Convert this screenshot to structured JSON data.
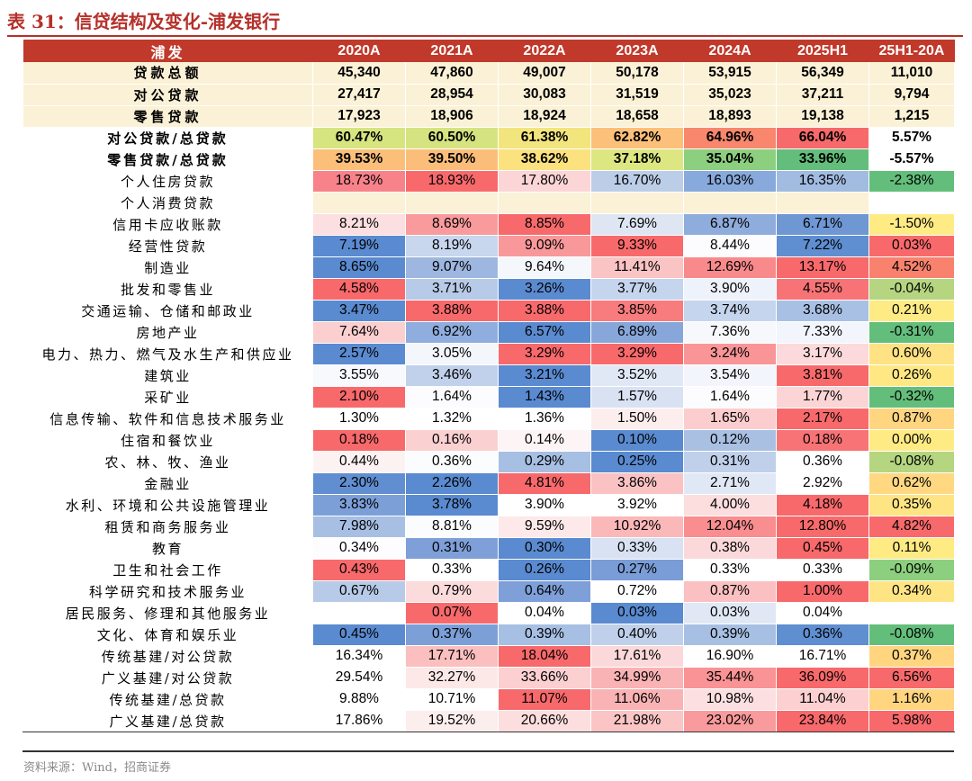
{
  "title": "表 31：信贷结构及变化-浦发银行",
  "source": "资料来源：Wind，招商证券",
  "columns": [
    "浦发",
    "2020A",
    "2021A",
    "2022A",
    "2023A",
    "2024A",
    "2025H1",
    "25H1-20A"
  ],
  "rows": [
    {
      "label": "贷款总额",
      "type": "sum",
      "values": [
        "45,340",
        "47,860",
        "49,007",
        "50,178",
        "53,915",
        "56,349",
        "11,010"
      ]
    },
    {
      "label": "对公贷款",
      "type": "sum",
      "values": [
        "27,417",
        "28,954",
        "30,083",
        "31,519",
        "35,023",
        "37,211",
        "9,794"
      ]
    },
    {
      "label": "零售贷款",
      "type": "sum",
      "values": [
        "17,923",
        "18,906",
        "18,924",
        "18,658",
        "18,893",
        "19,138",
        "1,215"
      ]
    },
    {
      "label": "对公贷款/总贷款",
      "type": "ratio",
      "sep": true,
      "values": [
        "60.47%",
        "60.50%",
        "61.38%",
        "62.82%",
        "64.96%",
        "66.04%",
        "5.57%"
      ],
      "colors": [
        "#d7e580",
        "#d5e480",
        "#f3e57e",
        "#fcc07a",
        "#f8876d",
        "#f7696b",
        "#ffffff"
      ]
    },
    {
      "label": "零售贷款/总贷款",
      "type": "ratio",
      "values": [
        "39.53%",
        "39.50%",
        "38.62%",
        "37.18%",
        "35.04%",
        "33.96%",
        "-5.57%"
      ],
      "colors": [
        "#fbbf7a",
        "#fbbe7a",
        "#fbe27f",
        "#dde781",
        "#8ccf7e",
        "#63be7b",
        "#ffffff"
      ]
    },
    {
      "label": "个人住房贷款",
      "sep": true,
      "values": [
        "18.73%",
        "18.93%",
        "17.80%",
        "16.70%",
        "16.03%",
        "16.35%",
        "-2.38%"
      ],
      "colors": [
        "#f8828a",
        "#f8696b",
        "#fcd5d6",
        "#bccde8",
        "#88a9db",
        "#a1bbe1",
        "#63be7b"
      ]
    },
    {
      "label": "个人消费贷款",
      "values": [
        "",
        "",
        "",
        "",
        "",
        "",
        ""
      ],
      "colors": [
        "#fbf1d6",
        "#fbf1d6",
        "#fbf1d6",
        "#fbf1d6",
        "#fbf1d6",
        "#fbf1d6",
        "#ffffff"
      ]
    },
    {
      "label": "信用卡应收账款",
      "values": [
        "8.21%",
        "8.69%",
        "8.85%",
        "7.69%",
        "6.87%",
        "6.71%",
        "-1.50%"
      ],
      "colors": [
        "#fcdfe0",
        "#f99b9d",
        "#f8696b",
        "#dfe6f3",
        "#8eacdc",
        "#6e97d4",
        "#ffeb84"
      ]
    },
    {
      "label": "经营性贷款",
      "values": [
        "7.19%",
        "8.19%",
        "9.09%",
        "9.33%",
        "8.44%",
        "7.22%",
        "0.03%"
      ],
      "colors": [
        "#5a8ad0",
        "#c8d6ee",
        "#f9989a",
        "#f8696b",
        "#fcfcff",
        "#5f8ed1",
        "#f8696b"
      ]
    },
    {
      "label": "制造业",
      "sep": true,
      "values": [
        "8.65%",
        "9.07%",
        "9.64%",
        "11.41%",
        "12.69%",
        "13.17%",
        "4.52%"
      ],
      "colors": [
        "#5a8ad0",
        "#9db7e0",
        "#f4f7fc",
        "#fac3c4",
        "#f88a8c",
        "#f8696b",
        "#f8826d"
      ]
    },
    {
      "label": "批发和零售业",
      "values": [
        "4.58%",
        "3.71%",
        "3.26%",
        "3.77%",
        "3.90%",
        "4.55%",
        "-0.04%"
      ],
      "colors": [
        "#f8696b",
        "#b7cae7",
        "#5a8ad0",
        "#c6d5ee",
        "#eef2fa",
        "#f87376",
        "#b5d580"
      ]
    },
    {
      "label": "交通运输、仓储和邮政业",
      "values": [
        "3.47%",
        "3.88%",
        "3.88%",
        "3.85%",
        "3.74%",
        "3.68%",
        "0.21%"
      ],
      "colors": [
        "#5a8ad0",
        "#f8696b",
        "#f8696b",
        "#f87b7d",
        "#c6d5ee",
        "#a8c0e3",
        "#ffeb84"
      ]
    },
    {
      "label": "房地产业",
      "values": [
        "7.64%",
        "6.92%",
        "6.57%",
        "6.89%",
        "7.36%",
        "7.33%",
        "-0.31%"
      ],
      "colors": [
        "#fbcfd0",
        "#8fadde",
        "#5a8ad0",
        "#87a7da",
        "#f6f8fc",
        "#f2f5fb",
        "#63be7b"
      ]
    },
    {
      "label": "电力、热力、燃气及水生产和供应业",
      "values": [
        "2.57%",
        "3.05%",
        "3.29%",
        "3.29%",
        "3.24%",
        "3.17%",
        "0.60%"
      ],
      "colors": [
        "#5a8ad0",
        "#f3f6fb",
        "#f8696b",
        "#f8696b",
        "#f99597",
        "#fcdadb",
        "#ffe283"
      ]
    },
    {
      "label": "建筑业",
      "values": [
        "3.55%",
        "3.46%",
        "3.21%",
        "3.52%",
        "3.54%",
        "3.81%",
        "0.26%"
      ],
      "colors": [
        "#f7f9fd",
        "#c1d1ec",
        "#5a8ad0",
        "#e1e8f5",
        "#f2f5fb",
        "#f8696b",
        "#ffe884"
      ]
    },
    {
      "label": "采矿业",
      "values": [
        "2.10%",
        "1.64%",
        "1.43%",
        "1.57%",
        "1.64%",
        "1.77%",
        "-0.32%"
      ],
      "colors": [
        "#f8696b",
        "#fcfcff",
        "#5a8ad0",
        "#d8e2f3",
        "#fcfcff",
        "#fbd5d6",
        "#63be7b"
      ]
    },
    {
      "label": "信息传输、软件和信息技术服务业",
      "values": [
        "1.30%",
        "1.32%",
        "1.36%",
        "1.50%",
        "1.65%",
        "2.17%",
        "0.87%"
      ],
      "colors": [
        "#ffffff",
        "#ffffff",
        "#ffffff",
        "#fdeeee",
        "#fccdce",
        "#f8696b",
        "#ffd580"
      ]
    },
    {
      "label": "住宿和餐饮业",
      "values": [
        "0.18%",
        "0.16%",
        "0.14%",
        "0.10%",
        "0.12%",
        "0.18%",
        "0.00%"
      ],
      "colors": [
        "#f8696b",
        "#fbd0d1",
        "#fcf4f5",
        "#5a8ad0",
        "#a9c0e3",
        "#f87376",
        "#ffeb84"
      ]
    },
    {
      "label": "农、林、牧、渔业",
      "values": [
        "0.44%",
        "0.36%",
        "0.29%",
        "0.25%",
        "0.31%",
        "0.36%",
        "-0.08%"
      ],
      "colors": [
        "#fdf2f2",
        "#fbfcfe",
        "#a7bfe3",
        "#5a8ad0",
        "#c0d0eb",
        "#ffffff",
        "#b5d580"
      ]
    },
    {
      "label": "金融业",
      "values": [
        "2.30%",
        "2.26%",
        "4.81%",
        "3.86%",
        "2.71%",
        "2.92%",
        "0.62%"
      ],
      "colors": [
        "#608ed1",
        "#5a8ad0",
        "#f8696b",
        "#fac2c3",
        "#e1e8f5",
        "#ffffff",
        "#ffd881"
      ]
    },
    {
      "label": "水利、环境和公共设施管理业",
      "values": [
        "3.83%",
        "3.78%",
        "3.90%",
        "3.92%",
        "4.00%",
        "4.18%",
        "0.35%"
      ],
      "colors": [
        "#7c9fd8",
        "#5a8ad0",
        "#ffffff",
        "#ffffff",
        "#fcdedf",
        "#f8696b",
        "#ffe483"
      ]
    },
    {
      "label": "租赁和商务服务业",
      "values": [
        "7.98%",
        "8.81%",
        "9.59%",
        "10.92%",
        "12.04%",
        "12.80%",
        "4.82%"
      ],
      "colors": [
        "#a7bfe3",
        "#fbfcfe",
        "#fde9e9",
        "#fbb8b9",
        "#f98d8f",
        "#f8696b",
        "#f8696b"
      ]
    },
    {
      "label": "教育",
      "values": [
        "0.34%",
        "0.31%",
        "0.30%",
        "0.33%",
        "0.38%",
        "0.45%",
        "0.11%"
      ],
      "colors": [
        "#fdfdff",
        "#7f9fd8",
        "#5a8ad0",
        "#d8e2f3",
        "#fbd9da",
        "#f8696b",
        "#ffeb84"
      ]
    },
    {
      "label": "卫生和社会工作",
      "values": [
        "0.43%",
        "0.33%",
        "0.26%",
        "0.27%",
        "0.33%",
        "0.33%",
        "-0.09%"
      ],
      "colors": [
        "#f8696b",
        "#ffffff",
        "#5a8ad0",
        "#7a9cd7",
        "#ffffff",
        "#ffffff",
        "#8ccf7e"
      ]
    },
    {
      "label": "科学研究和技术服务业",
      "values": [
        "0.67%",
        "0.79%",
        "0.64%",
        "0.72%",
        "0.87%",
        "1.00%",
        "0.34%"
      ],
      "colors": [
        "#b7cae7",
        "#fbdbdc",
        "#7e9fd8",
        "#ffffff",
        "#fbc0c1",
        "#f8696b",
        "#ffe483"
      ]
    },
    {
      "label": "居民服务、修理和其他服务业",
      "values": [
        "",
        "0.07%",
        "0.04%",
        "0.03%",
        "0.03%",
        "0.04%",
        ""
      ],
      "colors": [
        "#ffffff",
        "#f8696b",
        "#ffffff",
        "#5a8ad0",
        "#e1e8f5",
        "#ffffff",
        "#ffffff"
      ]
    },
    {
      "label": "文化、体育和娱乐业",
      "values": [
        "0.45%",
        "0.37%",
        "0.39%",
        "0.40%",
        "0.39%",
        "0.36%",
        "-0.08%"
      ],
      "colors": [
        "#5a8ad0",
        "#7c9fd8",
        "#a7bfe3",
        "#c0d0eb",
        "#a7bfe3",
        "#5f8ed1",
        "#63be7b"
      ]
    },
    {
      "label": "传统基建/对公贷款",
      "sep": true,
      "values": [
        "16.34%",
        "17.71%",
        "18.04%",
        "17.61%",
        "16.90%",
        "16.71%",
        "0.37%"
      ],
      "colors": [
        "#ffffff",
        "#fbbfc0",
        "#f8696b",
        "#fbd9da",
        "#ffffff",
        "#ffffff",
        "#ffd580"
      ]
    },
    {
      "label": "广义基建/对公贷款",
      "values": [
        "29.54%",
        "32.27%",
        "33.66%",
        "34.99%",
        "35.44%",
        "36.09%",
        "6.56%"
      ],
      "colors": [
        "#ffffff",
        "#fde8e8",
        "#fcd0d1",
        "#fab3b5",
        "#f99395",
        "#f8696b",
        "#f8696b"
      ]
    },
    {
      "label": "传统基建/总贷款",
      "values": [
        "9.88%",
        "10.71%",
        "11.07%",
        "11.06%",
        "10.98%",
        "11.04%",
        "1.16%"
      ],
      "colors": [
        "#ffffff",
        "#ffffff",
        "#f8696b",
        "#fab3b5",
        "#fcdfe0",
        "#fcd0d1",
        "#ffd580"
      ]
    },
    {
      "label": "广义基建/总贷款",
      "last": true,
      "values": [
        "17.86%",
        "19.52%",
        "20.66%",
        "21.98%",
        "23.02%",
        "23.84%",
        "5.98%"
      ],
      "colors": [
        "#ffffff",
        "#fdeeee",
        "#fcdedf",
        "#fbc4c5",
        "#f99a9c",
        "#f8696b",
        "#f8696b"
      ]
    }
  ]
}
